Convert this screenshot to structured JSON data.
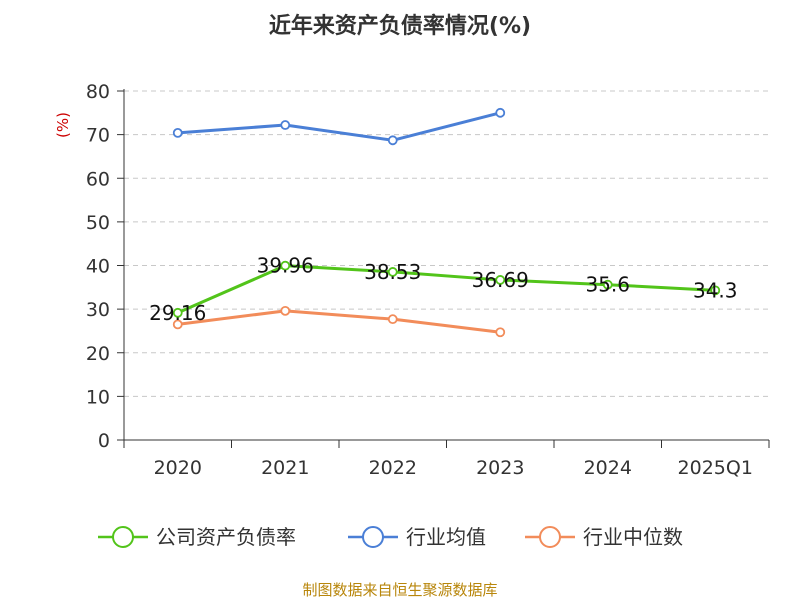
{
  "chart_data": {
    "type": "line",
    "title": "近年来资产负债率情况(%)",
    "y_unit": "(%)",
    "categories": [
      "2020",
      "2021",
      "2022",
      "2023",
      "2024",
      "2025Q1"
    ],
    "y_ticks": [
      "0",
      "10",
      "20",
      "30",
      "40",
      "50",
      "60",
      "70",
      "80"
    ],
    "ylim": [
      0,
      80
    ],
    "grid": true,
    "legend_position": "bottom",
    "series": [
      {
        "name": "公司资产负债率",
        "color": "#52c41a",
        "values": [
          29.16,
          39.96,
          38.53,
          36.69,
          35.6,
          34.3
        ],
        "labels": [
          "29.16",
          "39.96",
          "38.53",
          "36.69",
          "35.6",
          "34.3"
        ]
      },
      {
        "name": "行业均值",
        "color": "#4a7fd6",
        "values": [
          70.4,
          72.2,
          68.7,
          75.0,
          null,
          null
        ]
      },
      {
        "name": "行业中位数",
        "color": "#f28c5a",
        "values": [
          26.5,
          29.6,
          27.7,
          24.7,
          null,
          null
        ]
      }
    ]
  },
  "source_text": "制图数据来自恒生聚源数据库"
}
